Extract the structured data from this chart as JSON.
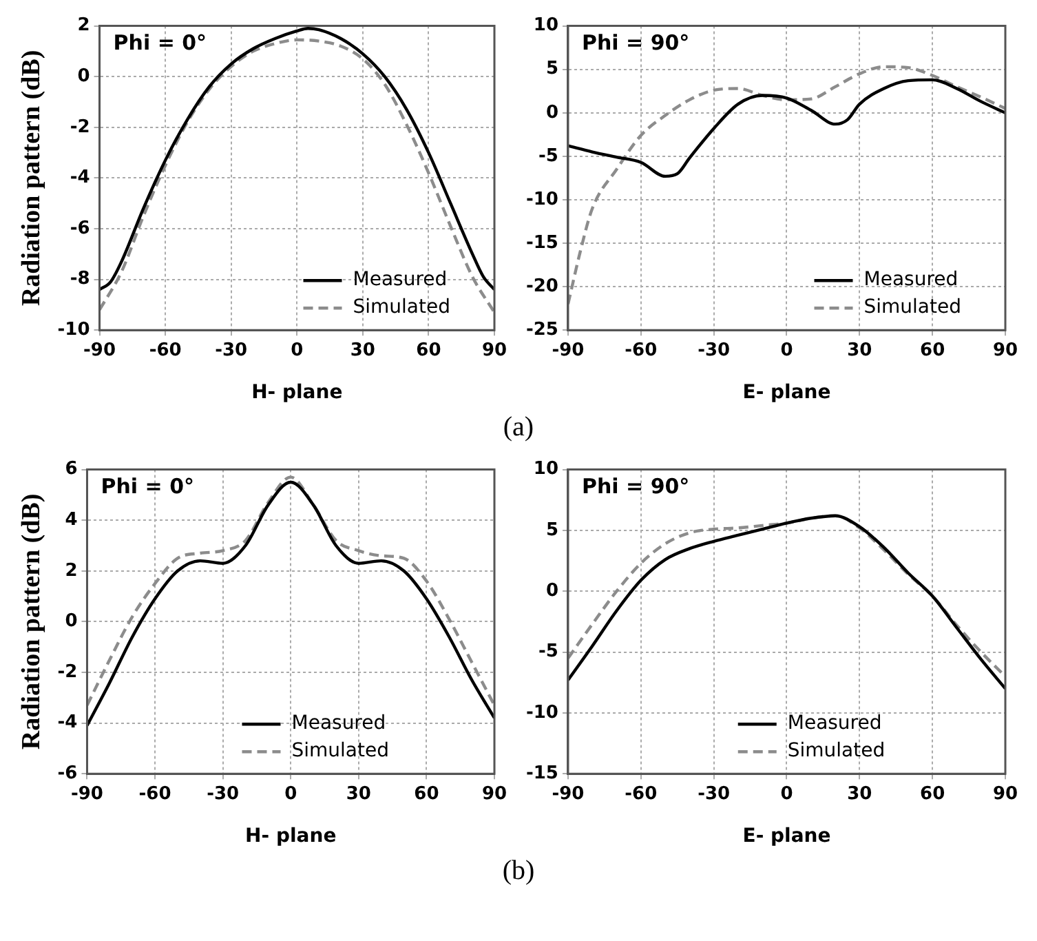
{
  "chart_data": [
    {
      "type": "line",
      "title": "Phi = 0°",
      "xlabel": "H- plane",
      "ylabel": "Radiation pattern (dB)",
      "annotations": [
        "(a)"
      ],
      "xlim": [
        -90,
        90
      ],
      "xticks": [
        -90,
        -60,
        -30,
        0,
        30,
        60,
        90
      ],
      "ylim": [
        -10,
        2
      ],
      "yticks": [
        -10,
        -8,
        -6,
        -4,
        -2,
        0,
        2
      ],
      "grid": true,
      "legend": "bottom right",
      "marker": "none",
      "series": [
        {
          "name": "Measured",
          "color": "#000000",
          "line_style": "solid",
          "x": [
            -90,
            -85,
            -80,
            -70,
            -60,
            -50,
            -40,
            -30,
            -20,
            -10,
            0,
            5,
            10,
            20,
            30,
            40,
            50,
            60,
            70,
            80,
            85,
            90
          ],
          "values": [
            -8.4,
            -8.1,
            -7.3,
            -5.2,
            -3.3,
            -1.7,
            -0.4,
            0.5,
            1.1,
            1.5,
            1.8,
            1.9,
            1.85,
            1.5,
            0.9,
            0.0,
            -1.3,
            -3.0,
            -5.0,
            -7.0,
            -7.9,
            -8.4
          ]
        },
        {
          "name": "Simulated",
          "color": "#8c8c8c",
          "line_style": "dashed",
          "x": [
            -90,
            -80,
            -70,
            -60,
            -50,
            -40,
            -30,
            -20,
            -10,
            0,
            10,
            20,
            30,
            40,
            50,
            60,
            70,
            80,
            90
          ],
          "values": [
            -9.2,
            -7.7,
            -5.5,
            -3.5,
            -1.8,
            -0.5,
            0.4,
            1.0,
            1.3,
            1.45,
            1.4,
            1.2,
            0.7,
            -0.3,
            -1.9,
            -3.8,
            -5.9,
            -7.9,
            -9.3
          ]
        }
      ]
    },
    {
      "type": "line",
      "title": "Phi = 90°",
      "xlabel": "E- plane",
      "xlim": [
        -90,
        90
      ],
      "xticks": [
        -90,
        -60,
        -30,
        0,
        30,
        60,
        90
      ],
      "ylim": [
        -25,
        10
      ],
      "yticks": [
        -25,
        -20,
        -15,
        -10,
        -5,
        0,
        5,
        10
      ],
      "grid": true,
      "legend": "bottom right",
      "marker": "none",
      "series": [
        {
          "name": "Measured",
          "color": "#000000",
          "line_style": "solid",
          "x": [
            -90,
            -80,
            -70,
            -60,
            -50,
            -45,
            -40,
            -30,
            -20,
            -10,
            0,
            10,
            20,
            25,
            30,
            40,
            50,
            60,
            70,
            80,
            90
          ],
          "values": [
            -3.8,
            -4.5,
            -5.1,
            -5.7,
            -7.3,
            -7.0,
            -5.2,
            -1.8,
            1.0,
            2.0,
            1.7,
            0.3,
            -1.3,
            -0.8,
            1.0,
            2.8,
            3.7,
            3.8,
            2.8,
            1.3,
            0
          ]
        },
        {
          "name": "Simulated",
          "color": "#8c8c8c",
          "line_style": "dashed",
          "x": [
            -90,
            -85,
            -80,
            -70,
            -60,
            -50,
            -40,
            -30,
            -20,
            -10,
            0,
            10,
            20,
            30,
            40,
            50,
            60,
            70,
            80,
            90
          ],
          "values": [
            -22,
            -16,
            -11,
            -6.5,
            -2.6,
            -0.3,
            1.5,
            2.6,
            2.8,
            2.0,
            1.5,
            1.6,
            3.0,
            4.5,
            5.3,
            5.2,
            4.3,
            3.0,
            1.8,
            0.5
          ]
        }
      ]
    },
    {
      "type": "line",
      "title": "Phi = 0°",
      "xlabel": "H- plane",
      "ylabel": "Radiation pattern (dB)",
      "annotations": [
        "(b)"
      ],
      "xlim": [
        -90,
        90
      ],
      "xticks": [
        -90,
        -60,
        -30,
        0,
        30,
        60,
        90
      ],
      "ylim": [
        -6,
        6
      ],
      "yticks": [
        -6,
        -4,
        -2,
        0,
        2,
        4,
        6
      ],
      "grid": true,
      "legend": "bottom",
      "marker": "none",
      "series": [
        {
          "name": "Measured",
          "color": "#000000",
          "line_style": "solid",
          "x": [
            -90,
            -80,
            -70,
            -60,
            -50,
            -40,
            -30,
            -20,
            -10,
            0,
            10,
            20,
            30,
            40,
            50,
            60,
            70,
            80,
            90
          ],
          "values": [
            -4.1,
            -2.4,
            -0.6,
            0.9,
            2.0,
            2.4,
            2.3,
            3.0,
            4.6,
            5.5,
            4.6,
            3.0,
            2.3,
            2.4,
            2.0,
            0.9,
            -0.6,
            -2.3,
            -3.8
          ]
        },
        {
          "name": "Simulated",
          "color": "#8c8c8c",
          "line_style": "dashed",
          "x": [
            -90,
            -80,
            -70,
            -60,
            -50,
            -40,
            -30,
            -20,
            -10,
            0,
            10,
            20,
            30,
            40,
            50,
            60,
            70,
            80,
            90
          ],
          "values": [
            -3.3,
            -1.5,
            0.2,
            1.5,
            2.5,
            2.7,
            2.8,
            3.2,
            4.7,
            5.7,
            4.6,
            3.2,
            2.8,
            2.6,
            2.5,
            1.6,
            0.1,
            -1.6,
            -3.3
          ]
        }
      ]
    },
    {
      "type": "line",
      "title": "Phi = 90°",
      "xlabel": "E- plane",
      "xlim": [
        -90,
        90
      ],
      "xticks": [
        -90,
        -60,
        -30,
        0,
        30,
        60,
        90
      ],
      "ylim": [
        -15,
        10
      ],
      "yticks": [
        -15,
        -10,
        -5,
        0,
        5,
        10
      ],
      "grid": true,
      "legend": "bottom",
      "marker": "none",
      "series": [
        {
          "name": "Measured",
          "color": "#000000",
          "line_style": "solid",
          "x": [
            -90,
            -80,
            -70,
            -60,
            -50,
            -40,
            -30,
            -20,
            -10,
            0,
            10,
            20,
            30,
            40,
            50,
            60,
            70,
            80,
            90
          ],
          "values": [
            -7.3,
            -4.5,
            -1.6,
            0.9,
            2.6,
            3.5,
            4.1,
            4.6,
            5.1,
            5.6,
            6.0,
            6.2,
            5.3,
            3.6,
            1.5,
            -0.4,
            -3.0,
            -5.6,
            -8.0
          ]
        },
        {
          "name": "Simulated",
          "color": "#8c8c8c",
          "line_style": "dashed",
          "x": [
            -90,
            -80,
            -70,
            -60,
            -50,
            -40,
            -30,
            -20,
            -10,
            0,
            10,
            20,
            30,
            40,
            50,
            60,
            70,
            80,
            90
          ],
          "values": [
            -5.5,
            -2.7,
            0.0,
            2.3,
            3.9,
            4.8,
            5.1,
            5.2,
            5.4,
            5.6,
            6.0,
            6.2,
            5.2,
            3.4,
            1.4,
            -0.4,
            -2.8,
            -5.0,
            -7.0
          ]
        }
      ]
    }
  ]
}
